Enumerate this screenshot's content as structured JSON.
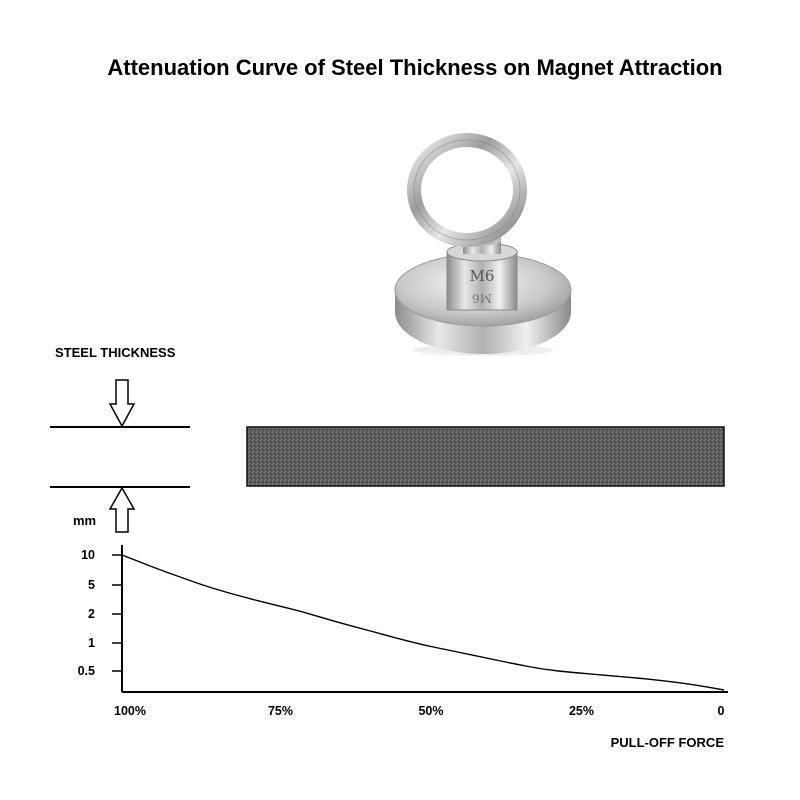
{
  "chart_data": {
    "type": "line",
    "title": "Attenuation Curve of Steel Thickness on Magnet Attraction",
    "xlabel": "PULL-OFF FORCE",
    "ylabel": "mm",
    "x_ticks": [
      "100%",
      "75%",
      "50%",
      "25%",
      "0"
    ],
    "y_ticks": [
      "10",
      "5",
      "2",
      "1",
      "0.5"
    ],
    "series": [
      {
        "x": [
          100,
          95,
          90,
          85,
          80,
          75,
          70,
          65,
          60,
          55,
          50,
          45,
          40,
          35,
          30,
          25,
          20,
          15,
          10,
          5,
          0
        ],
        "y": [
          10,
          7.6,
          5.9,
          4.5,
          3.45,
          2.7,
          2.15,
          1.7,
          1.4,
          1.15,
          0.95,
          0.82,
          0.7,
          0.6,
          0.52,
          0.45,
          0.38,
          0.32,
          0.26,
          0.2,
          0.14
        ]
      }
    ]
  },
  "legend": {
    "heading": "STEEL THICKNESS"
  },
  "product": {
    "stamp_top": "M6",
    "stamp_bottom": "M6"
  },
  "colors": {
    "steel_plate": "#5a5a5a",
    "line": "#000000"
  }
}
